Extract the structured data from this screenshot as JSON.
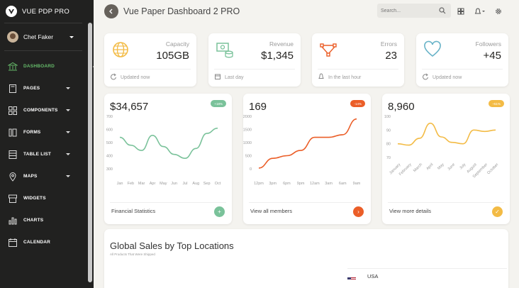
{
  "sidebar": {
    "brand": "VUE PDP PRO",
    "user_name": "Chet Faker",
    "items": [
      {
        "label": "DASHBOARD",
        "icon": "bank-icon",
        "active": true,
        "has_caret": false
      },
      {
        "label": "PAGES",
        "icon": "book-icon",
        "active": false,
        "has_caret": true
      },
      {
        "label": "COMPONENTS",
        "icon": "grid-icon",
        "active": false,
        "has_caret": true
      },
      {
        "label": "FORMS",
        "icon": "pencil-icon",
        "active": false,
        "has_caret": true
      },
      {
        "label": "TABLE LIST",
        "icon": "table-icon",
        "active": false,
        "has_caret": true
      },
      {
        "label": "MAPS",
        "icon": "pin-icon",
        "active": false,
        "has_caret": true
      },
      {
        "label": "WIDGETS",
        "icon": "box-icon",
        "active": false,
        "has_caret": false
      },
      {
        "label": "CHARTS",
        "icon": "chart-icon",
        "active": false,
        "has_caret": false
      },
      {
        "label": "CALENDAR",
        "icon": "calendar-icon",
        "active": false,
        "has_caret": false
      }
    ]
  },
  "topbar": {
    "title": "Vue Paper Dashboard 2 PRO",
    "search_placeholder": "Search..."
  },
  "stats": [
    {
      "label": "Capacity",
      "value": "105GB",
      "footer": "Updated now",
      "icon": "globe-icon",
      "color": "#f3bb45",
      "footer_icon": "refresh-icon"
    },
    {
      "label": "Revenue",
      "value": "$1,345",
      "footer": "Last day",
      "icon": "money-icon",
      "color": "#7ac29a",
      "footer_icon": "calendar-icon"
    },
    {
      "label": "Errors",
      "value": "23",
      "footer": "In the last hour",
      "icon": "vector-icon",
      "color": "#eb5e28",
      "footer_icon": "bell-icon"
    },
    {
      "label": "Followers",
      "value": "+45",
      "footer": "Updated now",
      "icon": "heart-icon",
      "color": "#68b3c8",
      "footer_icon": "refresh-icon"
    }
  ],
  "charts": [
    {
      "value": "$34,657",
      "badge": "+18%",
      "color": "#7ac29a",
      "footer": "Financial Statistics",
      "button": "+",
      "chart_data": {
        "type": "line",
        "categories": [
          "Jan",
          "Feb",
          "Mar",
          "Apr",
          "May",
          "Jun",
          "Jul",
          "Aug",
          "Sep",
          "Oct"
        ],
        "y_ticks": [
          "700",
          "600",
          "500",
          "400",
          "300"
        ],
        "ylim": [
          300,
          700
        ],
        "values": [
          540,
          480,
          440,
          555,
          470,
          410,
          380,
          455,
          570,
          610
        ]
      }
    },
    {
      "value": "169",
      "badge": "-14%",
      "color": "#eb5e28",
      "footer": "View all members",
      "button": "›",
      "chart_data": {
        "type": "line",
        "categories": [
          "12pm",
          "3pm",
          "6pm",
          "9pm",
          "12am",
          "3am",
          "6am",
          "9am"
        ],
        "y_ticks": [
          "2000",
          "1500",
          "1000",
          "500",
          "0"
        ],
        "ylim": [
          0,
          2000
        ],
        "values": [
          30,
          400,
          500,
          700,
          1200,
          1200,
          1300,
          1900
        ]
      }
    },
    {
      "value": "8,960",
      "badge": "~51%",
      "color": "#f3bb45",
      "footer": "View more details",
      "button": "✓",
      "chart_data": {
        "type": "line",
        "categories": [
          "January",
          "February",
          "March",
          "April",
          "May",
          "June",
          "July",
          "August",
          "September",
          "October"
        ],
        "y_ticks": [
          "100",
          "90",
          "80",
          "70"
        ],
        "ylim": [
          70,
          100
        ],
        "values": [
          80,
          79,
          84,
          95,
          85,
          81,
          80,
          90,
          89,
          90
        ]
      }
    }
  ],
  "global_sales": {
    "title": "Global Sales by Top Locations",
    "subtitle": "All Products That Were Shipped",
    "rows": [
      {
        "country": "USA"
      }
    ]
  }
}
